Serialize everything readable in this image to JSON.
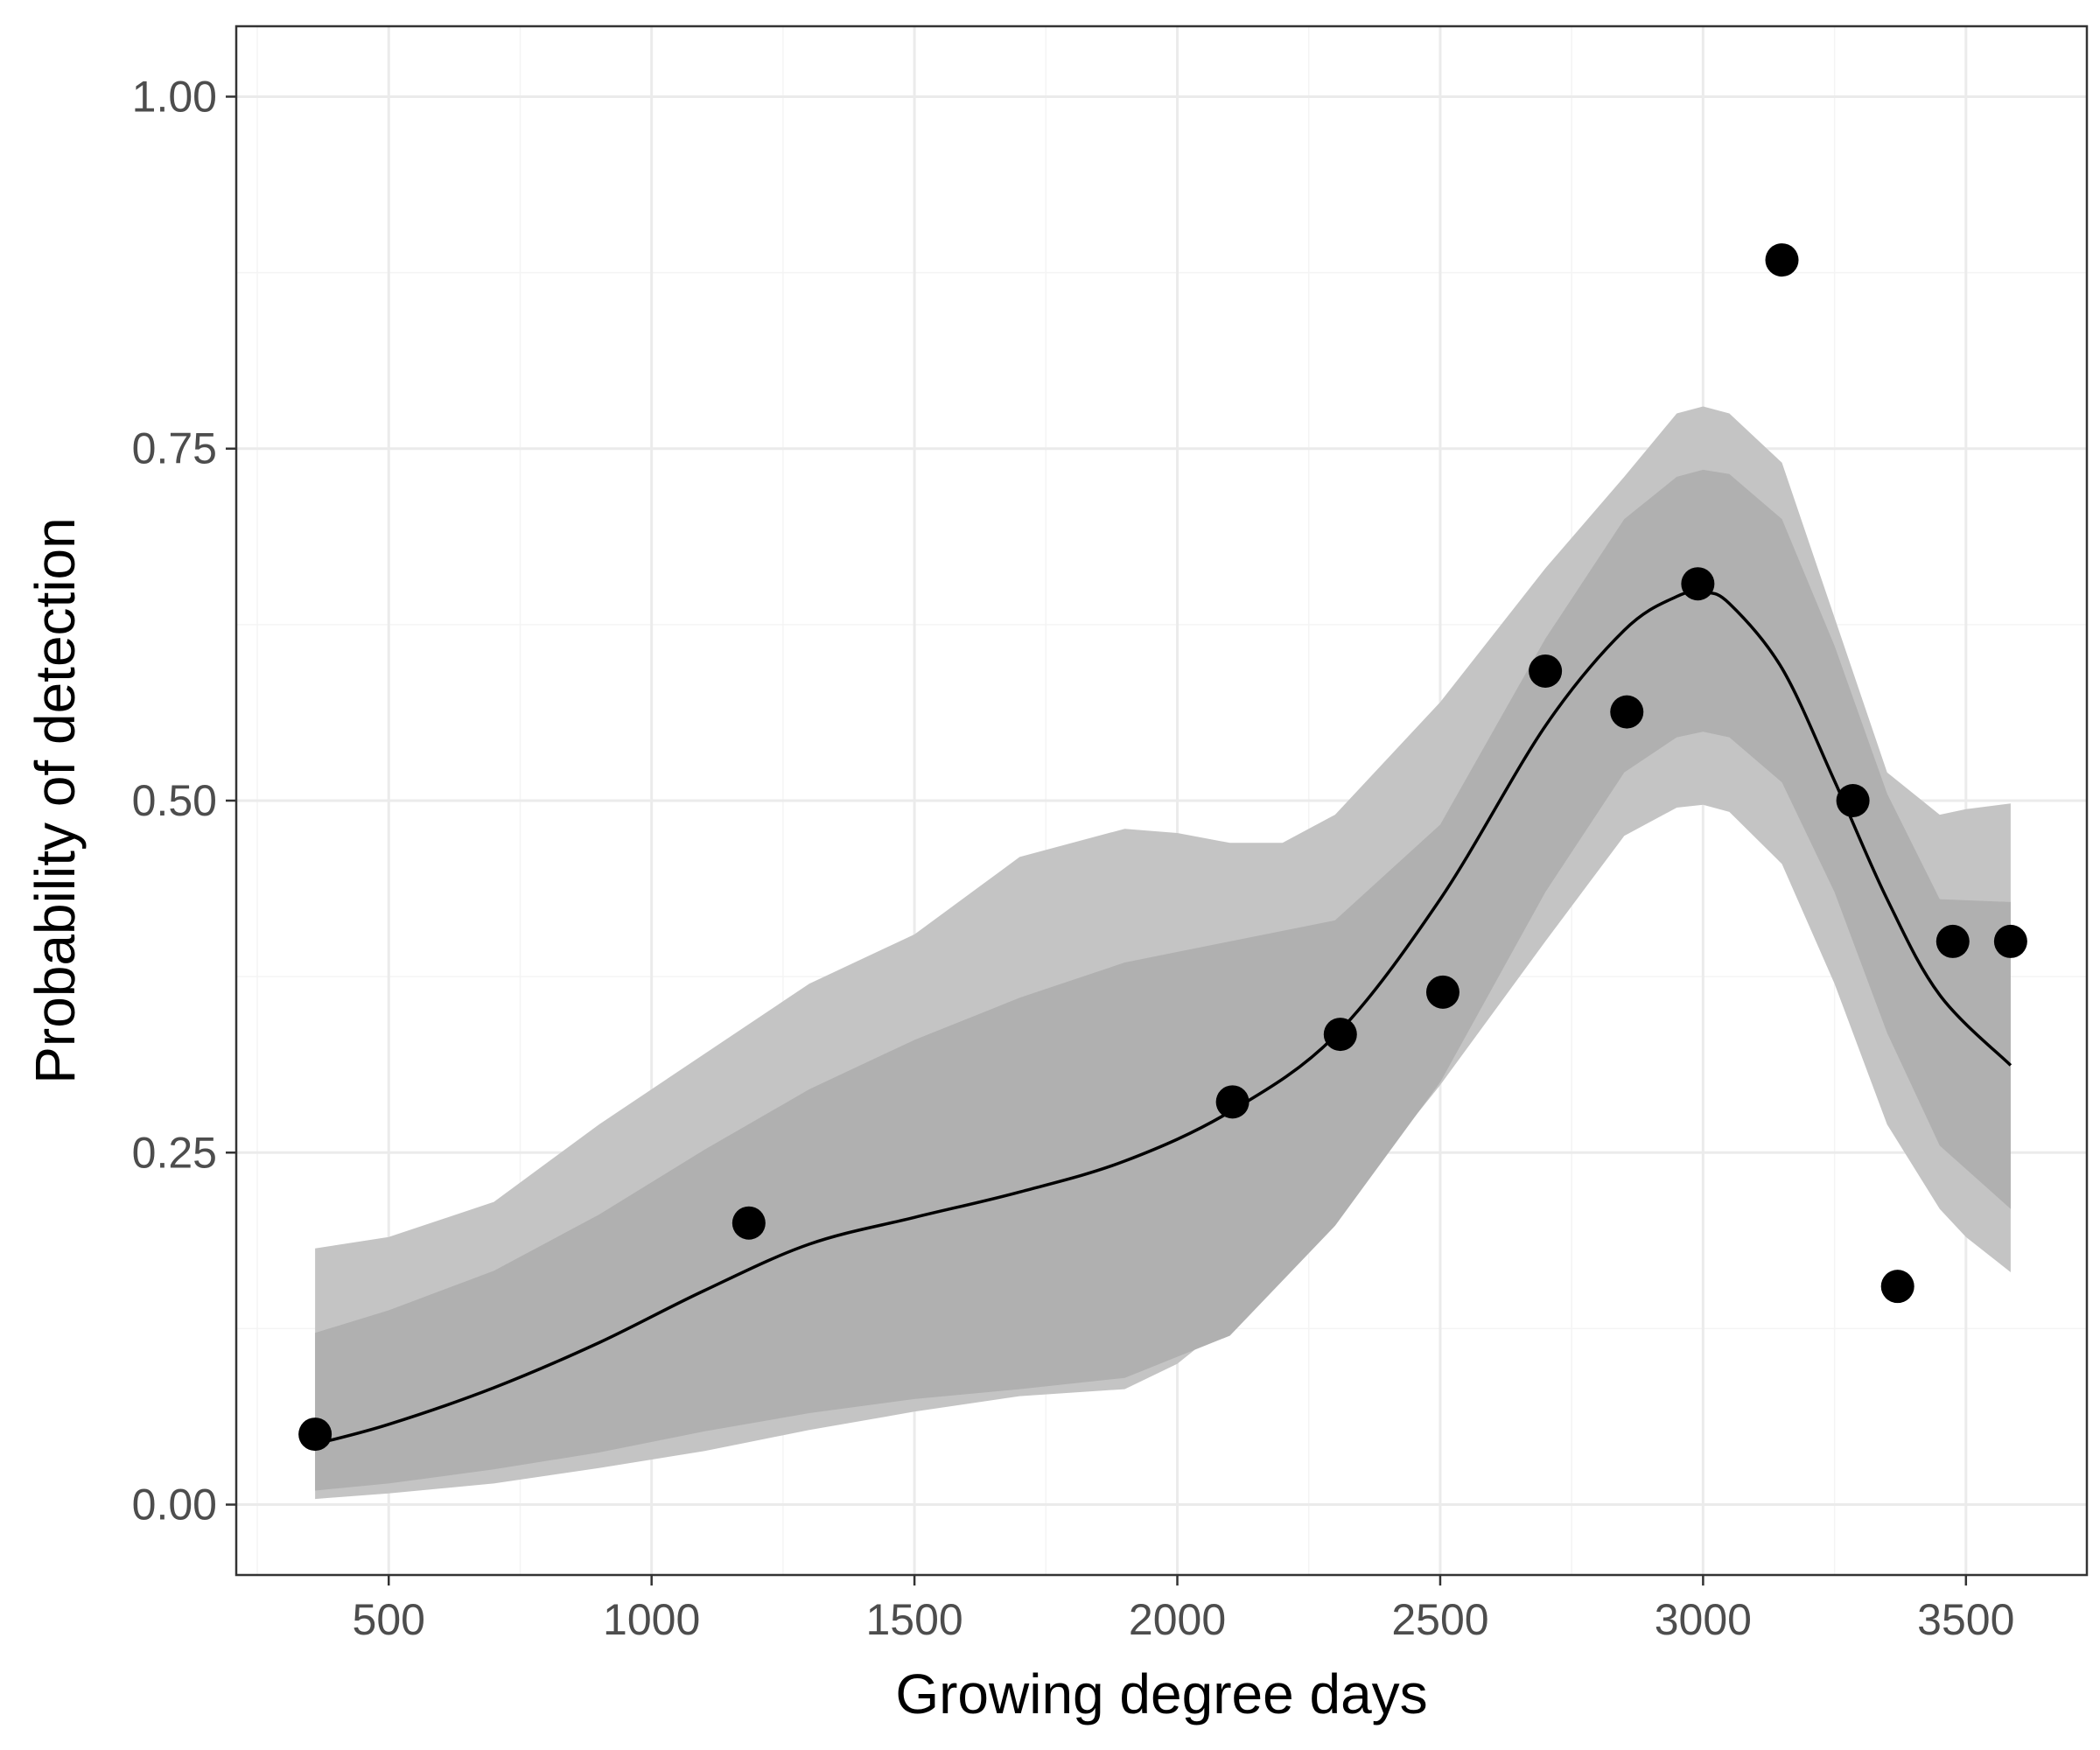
{
  "chart_data": {
    "type": "scatter",
    "xlabel": "Growing degree days",
    "ylabel": "Probability of detection",
    "xlim": [
      210,
      3730
    ],
    "ylim": [
      -0.05,
      1.05
    ],
    "x_ticks": [
      500,
      1000,
      1500,
      2000,
      2500,
      3000,
      3500
    ],
    "x_tick_labels": [
      "500",
      "1000",
      "1500",
      "2000",
      "2500",
      "3000",
      "3500"
    ],
    "x_minor_ticks": [
      250,
      750,
      1250,
      1750,
      2250,
      2750,
      3250
    ],
    "y_ticks": [
      0,
      0.25,
      0.5,
      0.75,
      1
    ],
    "y_tick_labels": [
      "0.00",
      "0.25",
      "0.50",
      "0.75",
      "1.00"
    ],
    "y_minor_ticks": [
      0.125,
      0.375,
      0.625,
      0.875
    ],
    "grid": true,
    "legend": "none",
    "points": {
      "x": [
        360,
        1185,
        2105,
        2310,
        2505,
        2700,
        2855,
        2990,
        3150,
        3285,
        3370,
        3475,
        3585
      ],
      "y": [
        0.05,
        0.2,
        0.286,
        0.334,
        0.364,
        0.592,
        0.563,
        0.654,
        0.884,
        0.5,
        0.155,
        0.4,
        0.4
      ]
    },
    "fit_line": {
      "x": [
        360,
        500,
        700,
        900,
        1100,
        1300,
        1500,
        1700,
        1900,
        2100,
        2300,
        2500,
        2700,
        2850,
        2950,
        3000,
        3050,
        3150,
        3250,
        3350,
        3450,
        3585
      ],
      "y": [
        0.043,
        0.057,
        0.083,
        0.115,
        0.152,
        0.185,
        0.204,
        0.222,
        0.244,
        0.279,
        0.333,
        0.43,
        0.553,
        0.621,
        0.645,
        0.648,
        0.64,
        0.594,
        0.514,
        0.43,
        0.362,
        0.312
      ]
    },
    "inner_band": {
      "x": [
        360,
        500,
        700,
        900,
        1100,
        1300,
        1500,
        1700,
        1900,
        2100,
        2300,
        2500,
        2700,
        2850,
        2950,
        3000,
        3050,
        3150,
        3250,
        3350,
        3450,
        3585
      ],
      "lower": [
        0.01,
        0.015,
        0.025,
        0.037,
        0.052,
        0.065,
        0.075,
        0.082,
        0.09,
        0.12,
        0.198,
        0.3,
        0.435,
        0.52,
        0.545,
        0.549,
        0.545,
        0.513,
        0.435,
        0.335,
        0.255,
        0.21
      ],
      "upper": [
        0.122,
        0.138,
        0.166,
        0.206,
        0.252,
        0.295,
        0.33,
        0.36,
        0.385,
        0.4,
        0.415,
        0.483,
        0.615,
        0.7,
        0.73,
        0.735,
        0.732,
        0.7,
        0.61,
        0.505,
        0.43,
        0.428
      ]
    },
    "outer_band": {
      "x": [
        360,
        500,
        700,
        900,
        1100,
        1300,
        1500,
        1700,
        1900,
        2000,
        2100,
        2200,
        2300,
        2500,
        2700,
        2850,
        2950,
        3000,
        3050,
        3150,
        3250,
        3350,
        3450,
        3500,
        3585
      ],
      "lower": [
        0.004,
        0.008,
        0.015,
        0.026,
        0.038,
        0.053,
        0.066,
        0.077,
        0.082,
        0.1,
        0.13,
        0.165,
        0.205,
        0.298,
        0.4,
        0.475,
        0.495,
        0.497,
        0.492,
        0.455,
        0.37,
        0.27,
        0.21,
        0.19,
        0.165
      ],
      "upper": [
        0.182,
        0.19,
        0.215,
        0.27,
        0.32,
        0.37,
        0.405,
        0.46,
        0.48,
        0.477,
        0.47,
        0.47,
        0.49,
        0.57,
        0.665,
        0.73,
        0.775,
        0.78,
        0.775,
        0.74,
        0.63,
        0.52,
        0.49,
        0.494,
        0.498
      ]
    },
    "colors": {
      "panel_border": "#333333",
      "grid_major": "#ebebeb",
      "grid_minor": "#f4f4f4",
      "outer_band": "#c4c4c4",
      "inner_band": "#b0b0b0",
      "line": "#000000",
      "points": "#000000",
      "tick_text": "#4d4d4d"
    }
  }
}
